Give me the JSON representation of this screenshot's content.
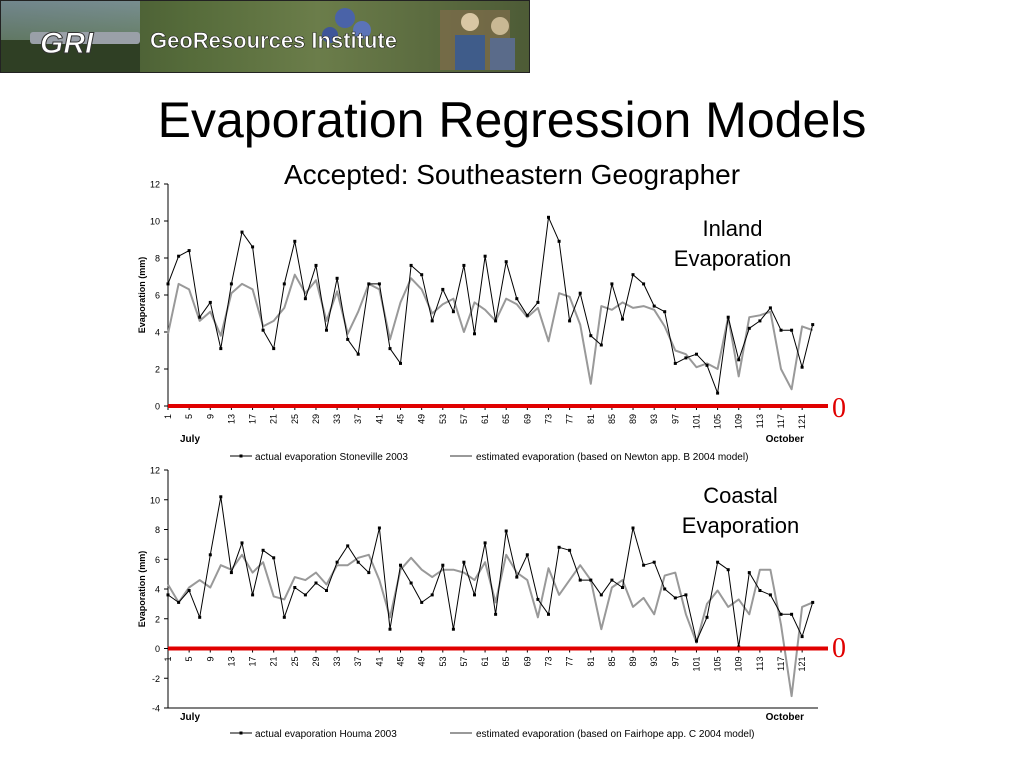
{
  "banner": {
    "logo_text": "GRI",
    "institute_name": "GeoResources Institute"
  },
  "slide": {
    "title": "Evaporation Regression Models",
    "subtitle": "Accepted: Southeastern Geographer"
  },
  "colors": {
    "actual": "#000000",
    "estimated": "#999999",
    "zero_line": "#e00000"
  },
  "chart_data": [
    {
      "type": "line",
      "annotation": [
        "Inland",
        "Evaporation"
      ],
      "zero_label": "0",
      "ylabel": "Evaporation (mm)",
      "ylim": [
        0,
        12
      ],
      "yticks": [
        0,
        2,
        4,
        6,
        8,
        10,
        12
      ],
      "xlim": [
        1,
        124
      ],
      "xticks": [
        1,
        5,
        9,
        13,
        17,
        21,
        25,
        29,
        33,
        37,
        41,
        45,
        49,
        53,
        57,
        61,
        65,
        69,
        73,
        77,
        81,
        85,
        89,
        93,
        97,
        101,
        105,
        109,
        113,
        117,
        121
      ],
      "period_start": "July",
      "period_end": "October",
      "series": [
        {
          "name": "actual evaporation Stoneville 2003",
          "x": [
            1,
            3,
            5,
            7,
            9,
            11,
            13,
            15,
            17,
            19,
            21,
            23,
            25,
            27,
            29,
            31,
            33,
            35,
            37,
            39,
            41,
            43,
            45,
            47,
            49,
            51,
            53,
            55,
            57,
            59,
            61,
            63,
            65,
            67,
            69,
            71,
            73,
            75,
            77,
            79,
            81,
            83,
            85,
            87,
            89,
            91,
            93,
            95,
            97,
            99,
            101,
            103,
            105,
            107,
            109,
            111,
            113,
            115,
            117,
            119,
            121,
            123
          ],
          "y": [
            6.6,
            8.1,
            8.4,
            4.8,
            5.6,
            3.1,
            6.6,
            9.4,
            8.6,
            4.1,
            3.1,
            6.6,
            8.9,
            5.8,
            7.6,
            4.1,
            6.9,
            3.6,
            2.8,
            6.6,
            6.6,
            3.1,
            2.3,
            7.6,
            7.1,
            4.6,
            6.3,
            5.1,
            7.6,
            3.9,
            8.1,
            4.6,
            7.8,
            5.8,
            4.9,
            5.6,
            10.2,
            8.9,
            4.6,
            6.1,
            3.8,
            3.3,
            6.6,
            4.7,
            7.1,
            6.6,
            5.4,
            5.1,
            2.3,
            2.6,
            2.8,
            2.2,
            0.7,
            4.8,
            2.5,
            4.2,
            4.6,
            5.3,
            4.1,
            4.1,
            2.1,
            4.4
          ]
        },
        {
          "name": "estimated evaporation (based on Newton app. B 2004 model)",
          "x": [
            1,
            3,
            5,
            7,
            9,
            11,
            13,
            15,
            17,
            19,
            21,
            23,
            25,
            27,
            29,
            31,
            33,
            35,
            37,
            39,
            41,
            43,
            45,
            47,
            49,
            51,
            53,
            55,
            57,
            59,
            61,
            63,
            65,
            67,
            69,
            71,
            73,
            75,
            77,
            79,
            81,
            83,
            85,
            87,
            89,
            91,
            93,
            95,
            97,
            99,
            101,
            103,
            105,
            107,
            109,
            111,
            113,
            115,
            117,
            119,
            121,
            123
          ],
          "y": [
            3.9,
            6.6,
            6.3,
            4.6,
            5.1,
            3.8,
            6.1,
            6.6,
            6.3,
            4.3,
            4.6,
            5.3,
            7.1,
            6.1,
            6.8,
            4.6,
            6.2,
            3.9,
            5.1,
            6.6,
            6.3,
            3.6,
            5.6,
            6.9,
            6.3,
            5.0,
            5.5,
            5.8,
            4.0,
            5.6,
            5.2,
            4.6,
            5.8,
            5.5,
            4.8,
            5.3,
            3.5,
            6.1,
            5.9,
            4.4,
            1.2,
            5.4,
            5.2,
            5.6,
            5.3,
            5.4,
            5.2,
            4.3,
            3.0,
            2.8,
            2.1,
            2.3,
            2.0,
            4.8,
            1.6,
            4.8,
            4.9,
            5.1,
            2.0,
            0.9,
            4.3,
            4.1
          ]
        }
      ]
    },
    {
      "type": "line",
      "annotation": [
        "Coastal",
        "Evaporation"
      ],
      "zero_label": "0",
      "ylabel": "Evaporation (mm)",
      "ylim": [
        -4,
        12
      ],
      "yticks": [
        -4,
        -2,
        0,
        2,
        4,
        6,
        8,
        10,
        12
      ],
      "xlim": [
        1,
        124
      ],
      "xticks": [
        1,
        5,
        9,
        13,
        17,
        21,
        25,
        29,
        33,
        37,
        41,
        45,
        49,
        53,
        57,
        61,
        65,
        69,
        73,
        77,
        81,
        85,
        89,
        93,
        97,
        101,
        105,
        109,
        113,
        117,
        121
      ],
      "period_start": "July",
      "period_end": "October",
      "series": [
        {
          "name": "actual evaporation Houma 2003",
          "x": [
            1,
            3,
            5,
            7,
            9,
            11,
            13,
            15,
            17,
            19,
            21,
            23,
            25,
            27,
            29,
            31,
            33,
            35,
            37,
            39,
            41,
            43,
            45,
            47,
            49,
            51,
            53,
            55,
            57,
            59,
            61,
            63,
            65,
            67,
            69,
            71,
            73,
            75,
            77,
            79,
            81,
            83,
            85,
            87,
            89,
            91,
            93,
            95,
            97,
            99,
            101,
            103,
            105,
            107,
            109,
            111,
            113,
            115,
            117,
            119,
            121,
            123
          ],
          "y": [
            3.6,
            3.1,
            3.9,
            2.1,
            6.3,
            10.2,
            5.1,
            7.1,
            3.6,
            6.6,
            6.1,
            2.1,
            4.1,
            3.6,
            4.4,
            3.9,
            5.8,
            6.9,
            5.8,
            5.1,
            8.1,
            1.3,
            5.6,
            4.4,
            3.1,
            3.6,
            5.6,
            1.3,
            5.8,
            3.6,
            7.1,
            2.3,
            7.9,
            4.8,
            6.3,
            3.3,
            2.3,
            6.8,
            6.6,
            4.6,
            4.6,
            3.6,
            4.6,
            4.1,
            8.1,
            5.6,
            5.8,
            4.0,
            3.4,
            3.6,
            0.5,
            2.1,
            5.8,
            5.3,
            0.1,
            5.1,
            3.9,
            3.6,
            2.3,
            2.3,
            0.8,
            3.1
          ]
        },
        {
          "name": "estimated evaporation (based on Fairhope app. C 2004 model)",
          "x": [
            1,
            3,
            5,
            7,
            9,
            11,
            13,
            15,
            17,
            19,
            21,
            23,
            25,
            27,
            29,
            31,
            33,
            35,
            37,
            39,
            41,
            43,
            45,
            47,
            49,
            51,
            53,
            55,
            57,
            59,
            61,
            63,
            65,
            67,
            69,
            71,
            73,
            75,
            77,
            79,
            81,
            83,
            85,
            87,
            89,
            91,
            93,
            95,
            97,
            99,
            101,
            103,
            105,
            107,
            109,
            111,
            113,
            115,
            117,
            119,
            121,
            123
          ],
          "y": [
            4.3,
            3.1,
            4.1,
            4.6,
            4.1,
            5.6,
            5.3,
            6.3,
            5.1,
            5.8,
            3.5,
            3.3,
            4.8,
            4.6,
            5.1,
            4.3,
            5.6,
            5.6,
            6.1,
            6.3,
            4.6,
            2.1,
            5.3,
            6.1,
            5.3,
            4.8,
            5.3,
            5.3,
            5.1,
            4.6,
            5.8,
            3.1,
            6.3,
            5.1,
            4.6,
            2.1,
            5.4,
            3.6,
            4.6,
            5.6,
            4.6,
            1.3,
            4.1,
            4.6,
            2.8,
            3.4,
            2.3,
            4.9,
            5.1,
            2.3,
            0.4,
            3.0,
            3.9,
            2.8,
            3.3,
            2.3,
            5.3,
            5.3,
            1.6,
            -3.2,
            2.8,
            3.1
          ]
        }
      ]
    }
  ]
}
